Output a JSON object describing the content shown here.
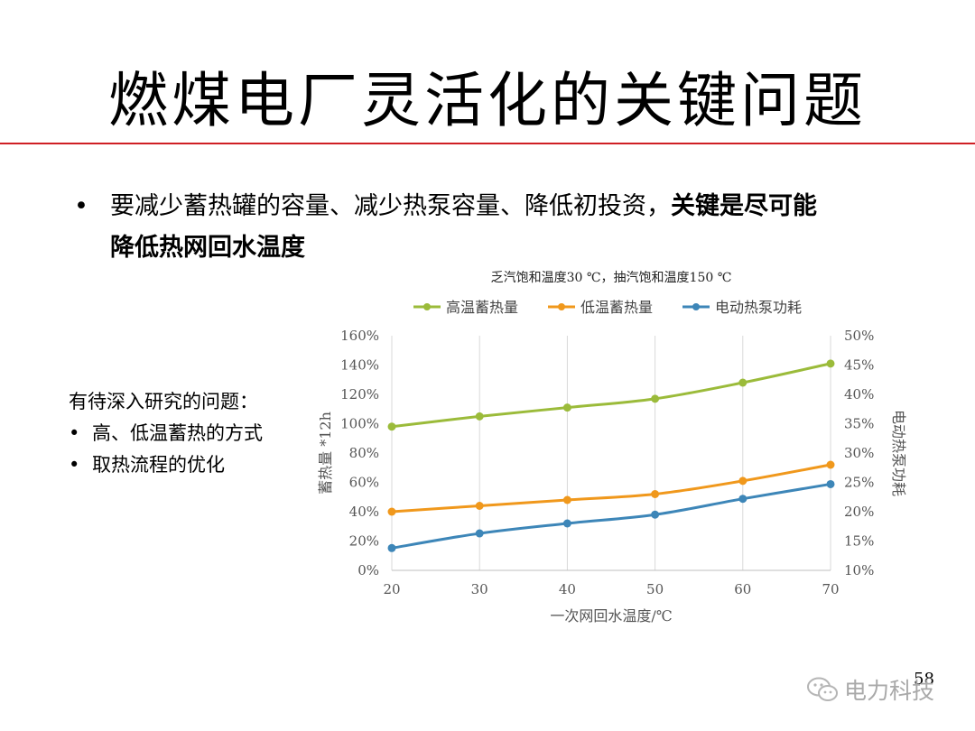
{
  "slide": {
    "title": "燃煤电厂灵活化的关键问题",
    "bullet_symbol": "•",
    "bullet_text_plain": "要减少蓄热罐的容量、减少热泵容量、降低初投资，",
    "bullet_text_bold_1": "关键是尽可能",
    "bullet_text_bold_2": "降低热网回水温度",
    "side_heading": "有待深入研究的问题：",
    "side_items": [
      "高、低温蓄热的方式",
      "取热流程的优化"
    ],
    "page_number": "58",
    "watermark": "电力科技"
  },
  "chart_data": {
    "type": "line",
    "title": "乏汽饱和温度30 ℃，抽汽饱和温度150 ℃",
    "xlabel": "一次网回水温度/℃",
    "ylabel_left": "蓄热量 *12h",
    "ylabel_right": "电动热泵功耗",
    "x": [
      20,
      30,
      40,
      50,
      60,
      70
    ],
    "x_tick_labels": [
      "20",
      "30",
      "40",
      "50",
      "60",
      "70"
    ],
    "ylim_left": [
      0,
      160
    ],
    "y_left_ticks": [
      "0%",
      "20%",
      "40%",
      "60%",
      "80%",
      "100%",
      "120%",
      "140%",
      "160%"
    ],
    "ylim_right": [
      10,
      50
    ],
    "y_right_ticks": [
      "10%",
      "15%",
      "20%",
      "25%",
      "30%",
      "35%",
      "40%",
      "45%",
      "50%"
    ],
    "grid": "vertical",
    "legend_position": "top",
    "series": [
      {
        "name": "高温蓄热量",
        "axis": "left",
        "color": "#9bbb3a",
        "values": [
          98,
          105,
          111,
          117,
          128,
          141
        ]
      },
      {
        "name": "低温蓄热量",
        "axis": "left",
        "color": "#f0981c",
        "values": [
          40,
          44,
          48,
          52,
          61,
          72
        ]
      },
      {
        "name": "电动热泵功耗",
        "axis": "right",
        "color": "#3d86b8",
        "values": [
          13.8,
          16.3,
          18.0,
          19.5,
          22.2,
          24.7
        ]
      }
    ]
  }
}
